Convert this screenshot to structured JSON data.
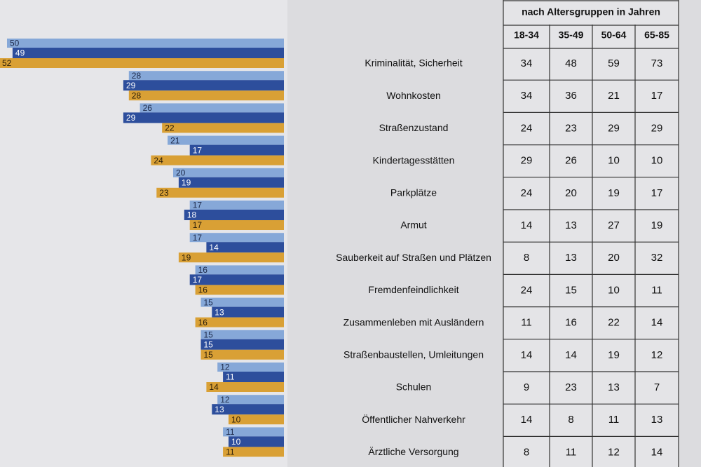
{
  "chart_data": {
    "type": "bar",
    "categories": [
      "Kriminalität, Sicherheit",
      "Wohnkosten",
      "Straßenzustand",
      "Kindertagesstätten",
      "Parkplätze",
      "Armut",
      "Sauberkeit auf Straßen und Plätzen",
      "Fremdenfeindlichkeit",
      "Zusammenleben mit Ausländern",
      "Straßenbaustellen, Umleitungen",
      "Schulen",
      "Öffentlicher Nahverkehr",
      "Ärztliche Versorgung"
    ],
    "series": [
      {
        "color": "#86a8d8",
        "values": [
          50,
          28,
          26,
          21,
          20,
          17,
          17,
          16,
          15,
          15,
          12,
          12,
          11
        ]
      },
      {
        "color": "#2d4e9c",
        "values": [
          49,
          29,
          29,
          17,
          19,
          18,
          14,
          17,
          13,
          15,
          11,
          13,
          10
        ]
      },
      {
        "color": "#d9a035",
        "values": [
          52,
          28,
          22,
          24,
          23,
          17,
          19,
          16,
          16,
          15,
          14,
          10,
          11
        ]
      }
    ]
  },
  "table": {
    "title": "nach Altersgruppen in Jahren",
    "columns": [
      "18-34",
      "35-49",
      "50-64",
      "65-85"
    ],
    "rows": [
      [
        34,
        48,
        59,
        73
      ],
      [
        34,
        36,
        21,
        17
      ],
      [
        24,
        23,
        29,
        29
      ],
      [
        29,
        26,
        10,
        10
      ],
      [
        24,
        20,
        19,
        17
      ],
      [
        14,
        13,
        27,
        19
      ],
      [
        8,
        13,
        20,
        32
      ],
      [
        24,
        15,
        10,
        11
      ],
      [
        11,
        16,
        22,
        14
      ],
      [
        14,
        14,
        19,
        12
      ],
      [
        9,
        23,
        13,
        7
      ],
      [
        14,
        8,
        11,
        13
      ],
      [
        8,
        11,
        12,
        14
      ]
    ]
  }
}
